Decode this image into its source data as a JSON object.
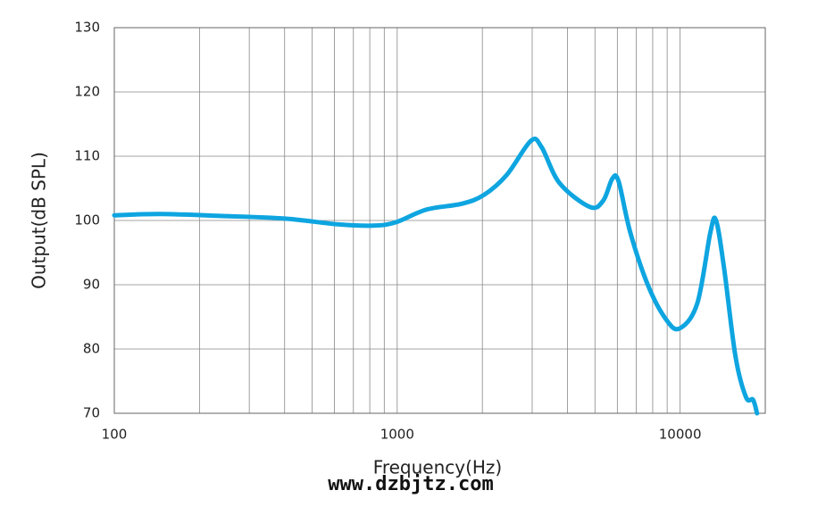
{
  "chart_data": {
    "type": "line",
    "x_label": "Frequency(Hz)",
    "y_label": "Output(dB SPL)",
    "watermark": "www.dzbjtz.com",
    "log_x": true,
    "grid": true,
    "xlim": [
      100,
      20000
    ],
    "xticks": [
      100,
      1000,
      10000
    ],
    "x_minor_ticks": [
      200,
      300,
      400,
      500,
      600,
      700,
      800,
      900,
      2000,
      3000,
      4000,
      5000,
      6000,
      7000,
      8000,
      9000
    ],
    "ylim": [
      70,
      130
    ],
    "yticks": [
      70,
      80,
      90,
      100,
      110,
      120,
      130
    ],
    "x": [
      100,
      145,
      241,
      400,
      616,
      823,
      985,
      1270,
      1690,
      2030,
      2440,
      2970,
      3240,
      3750,
      4800,
      5350,
      5760,
      6060,
      6660,
      7700,
      8920,
      9960,
      11500,
      12800,
      13400,
      14300,
      15700,
      17100,
      18100,
      18700
    ],
    "series": [
      {
        "color": "#0ea5e0",
        "values": [
          100.8,
          101,
          100.7,
          100.3,
          99.4,
          99.2,
          99.7,
          101.7,
          102.6,
          104,
          107.1,
          112.4,
          111.4,
          105.8,
          102.1,
          103.1,
          106.5,
          106.1,
          98.2,
          89.9,
          84.6,
          83.2,
          87.1,
          98.2,
          100,
          92.6,
          78.8,
          72.5,
          72.1,
          70
        ]
      }
    ]
  }
}
